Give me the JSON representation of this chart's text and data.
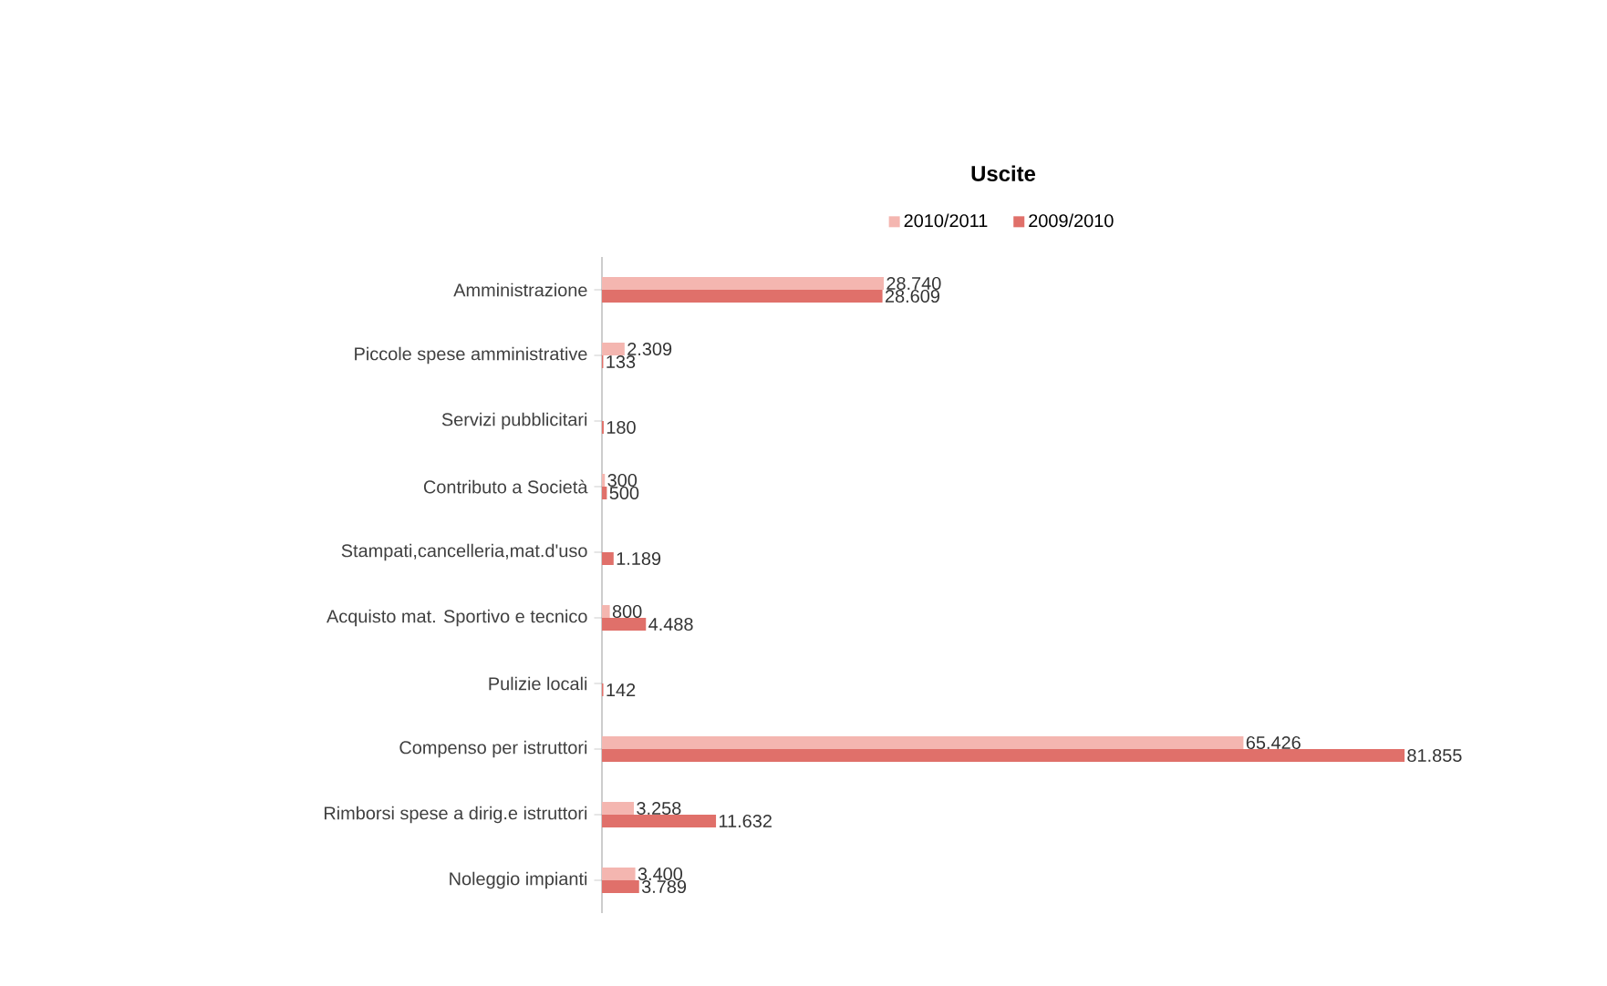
{
  "chart_data": {
    "type": "bar",
    "orientation": "horizontal",
    "title": "Uscite",
    "categories": [
      "Amministrazione",
      "Piccole spese amministrative",
      "Servizi pubblicitari",
      "Contributo a Società",
      "Stampati,cancelleria,mat.d'uso",
      "Acquisto mat. Sportivo e tecnico",
      "Pulizie locali",
      "Compenso per istruttori",
      "Rimborsi spese a dirig.e istruttori",
      "Noleggio impianti"
    ],
    "series": [
      {
        "name": "2010/2011",
        "color": "#f4b6b0",
        "values": [
          28740,
          2309,
          null,
          300,
          null,
          800,
          null,
          65426,
          3258,
          3400
        ],
        "value_labels": [
          "28.740",
          "2.309",
          null,
          "300",
          null,
          "800",
          null,
          "65.426",
          "3.258",
          "3.400"
        ]
      },
      {
        "name": "2009/2010",
        "color": "#e0706a",
        "values": [
          28609,
          133,
          180,
          500,
          1189,
          4488,
          142,
          81855,
          11632,
          3789
        ],
        "value_labels": [
          "28.609",
          "133",
          "180",
          "500",
          "1.189",
          "4.488",
          "142",
          "81.855",
          "11.632",
          "3.789"
        ]
      }
    ],
    "legend": "top"
  }
}
